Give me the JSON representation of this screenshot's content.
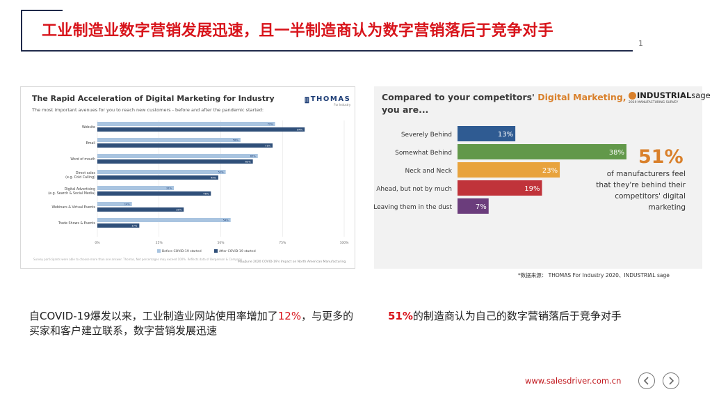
{
  "slide": {
    "title": "工业制造业数字营销发展迅速，且一半制造商认为数字营销落后于竞争对手",
    "page_number": "1",
    "data_source": "*数据来源： THOMAS For Industry 2020、INDUSTRIAL sage",
    "caption_left_prefix": "自COVID-19爆发以来，工业制造业网站使用率增加了",
    "caption_left_highlight": "12%",
    "caption_left_suffix": "，与更多的买家和客户建立联系，数字营销发展迅速",
    "caption_right_highlight": "51%",
    "caption_right_suffix": "的制造商认为自己的数字营销落后于竞争对手",
    "website": "www.salesdriver.com.cn",
    "prev_icon": "chevron-left-icon",
    "next_icon": "chevron-right-icon"
  },
  "left_chart": {
    "logo_mark": "⫾⫾",
    "logo_text": "THOMAS",
    "logo_sub": "For Industry",
    "footnote": "Survey participants were able to choose more than one answer. Thomas, Net percentages may exceed 100%. Reflects data of Bergenson & Company",
    "source": "May/June 2020 COVID-19's Impact on North American Manufacturing"
  },
  "right_chart": {
    "title_prefix": "Compared to your competitors' ",
    "title_highlight": "Digital Marketing,",
    "title_line2": "you are...",
    "logo_text_bold": "INDUSTRIAL",
    "logo_text_light": "sage",
    "logo_sub": "2019 MANUFACTURING SURVEY",
    "big_pct": "51%",
    "big_desc": "of manufacturers feel that they're behind their competitors' digital marketing"
  },
  "chart_data": [
    {
      "type": "bar",
      "orientation": "horizontal",
      "title": "The Rapid Acceleration of Digital Marketing for Industry",
      "subtitle": "The most important avenues for you to reach new customers - before and after the pandemic started:",
      "categories": [
        "Website",
        "Email",
        "Word of mouth",
        "Direct sales\n(e.g. Cold Calling)",
        "Digital Advertising\n(e.g. Search & Social Media)",
        "Webinars & Virtual Events",
        "Trade Shows & Events"
      ],
      "series": [
        {
          "name": "Before COVID-19 started",
          "color": "#a9c4e0",
          "values": [
            72,
            58,
            65,
            52,
            31,
            14,
            54
          ]
        },
        {
          "name": "After COVID-19 started",
          "color": "#2f4f79",
          "values": [
            84,
            71,
            63,
            49,
            46,
            35,
            17
          ]
        }
      ],
      "x_ticks": [
        "0%",
        "25%",
        "50%",
        "75%",
        "100%"
      ],
      "xlim": [
        0,
        100
      ],
      "legend": "bottom"
    },
    {
      "type": "bar",
      "orientation": "horizontal",
      "title": "Compared to your competitors' Digital Marketing, you are...",
      "categories": [
        "Severely Behind",
        "Somewhat Behind",
        "Neck and Neck",
        "Ahead, but not by much",
        "Leaving them in the dust"
      ],
      "values": [
        13,
        38,
        23,
        19,
        7
      ],
      "colors": [
        "#2f5b92",
        "#62984a",
        "#e8a33d",
        "#c0333a",
        "#6b3d7c"
      ],
      "xlim": [
        0,
        38
      ]
    }
  ]
}
